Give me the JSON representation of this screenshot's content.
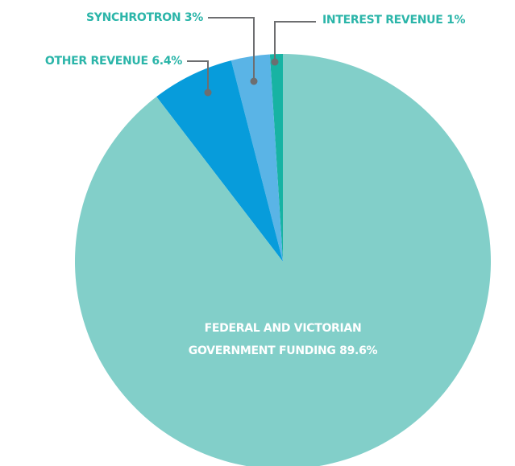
{
  "chart_data": {
    "type": "pie",
    "categories": [
      "INTEREST REVENUE",
      "SYNCHROTRON",
      "OTHER REVENUE",
      "FEDERAL AND VICTORIAN GOVERNMENT FUNDING"
    ],
    "values": [
      1,
      3,
      6.4,
      89.6
    ],
    "value_labels": [
      "1%",
      "3%",
      "6.4%",
      "89.6%"
    ],
    "colors": [
      "#17b3a3",
      "#5ab4e6",
      "#079cdb",
      "#82cfc9"
    ]
  }
}
